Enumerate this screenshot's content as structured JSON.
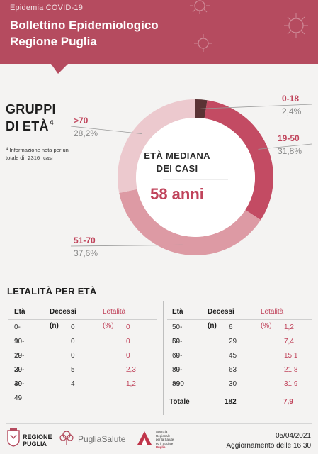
{
  "header": {
    "kicker": "Epidemia COVID-19",
    "title_line1": "Bollettino Epidemiologico",
    "title_line2": "Regione Puglia",
    "banner_color": "#b54b5f"
  },
  "groups": {
    "title_line1": "GRUPPI",
    "title_line2": "DI ETÀ",
    "title_sup": "4",
    "footnote_num": "4",
    "footnote_text": "Informazione nota per un totale di",
    "footnote_total": "2316",
    "footnote_unit": "casi"
  },
  "center": {
    "line1": "ETÀ MEDIANA",
    "line2": "DEI CASI",
    "value": "58 anni"
  },
  "chart_data": {
    "type": "pie",
    "categories": [
      "0-18",
      "19-50",
      "51-70",
      ">70"
    ],
    "values": [
      2.4,
      31.8,
      37.6,
      28.2
    ],
    "labels": [
      "2,4%",
      "31,8%",
      "37,6%",
      "28,2%"
    ],
    "colors": [
      "#5a3234",
      "#c34b63",
      "#dd9aa4",
      "#ecc9ce"
    ]
  },
  "lethality": {
    "title": "LETALITÀ PER ETÀ",
    "headers": [
      "Età",
      "Decessi (n)",
      "Letalità (%)"
    ],
    "left": [
      {
        "age": "0-9",
        "deaths": "0",
        "rate": "0"
      },
      {
        "age": "10-19",
        "deaths": "0",
        "rate": "0"
      },
      {
        "age": "20-29",
        "deaths": "0",
        "rate": "0"
      },
      {
        "age": "30-39",
        "deaths": "5",
        "rate": "2,3"
      },
      {
        "age": "40-49",
        "deaths": "4",
        "rate": "1,2"
      }
    ],
    "right": [
      {
        "age": "50-59",
        "deaths": "6",
        "rate": "1,2"
      },
      {
        "age": "60-69",
        "deaths": "29",
        "rate": "7,4"
      },
      {
        "age": "70-79",
        "deaths": "45",
        "rate": "15,1"
      },
      {
        "age": "80-89",
        "deaths": "63",
        "rate": "21,8"
      },
      {
        "age": ">90",
        "deaths": "30",
        "rate": "31,9"
      }
    ],
    "total": {
      "label": "Totale",
      "deaths": "182",
      "rate": "7,9"
    }
  },
  "footer": {
    "regione_line1": "REGIONE",
    "regione_line2": "PUGLIA",
    "pugliasalute_a": "Puglia",
    "pugliasalute_b": "Salute",
    "ares_line1": "Agenzia",
    "ares_line2": "Regionale",
    "ares_line3": "per la Salute",
    "ares_line4": "ed il Sociale",
    "ares_line5": "Puglia",
    "date": "05/04/2021",
    "update": "Aggiornamento delle 16.30"
  }
}
